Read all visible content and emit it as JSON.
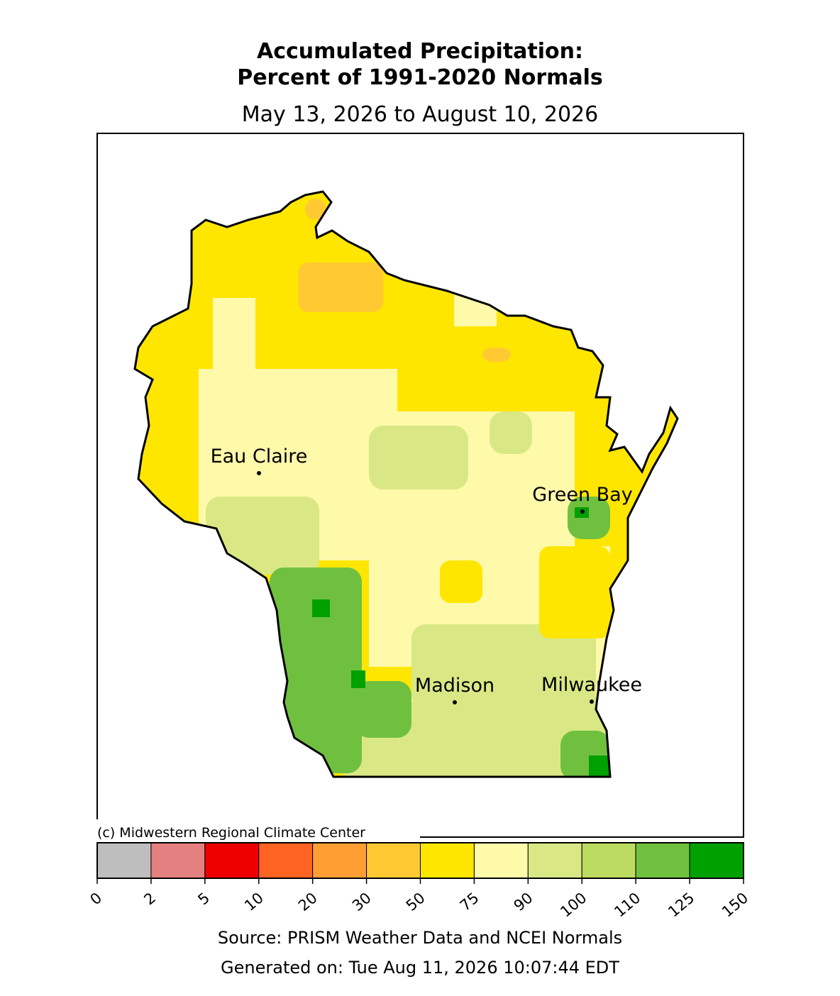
{
  "map": {
    "title": "Accumulated Precipitation:",
    "title_line2": "Percent of 1991-2020 Normals",
    "subtitle": "May 13, 2026 to August 10, 2026",
    "cities": [
      "Eau Claire",
      "Green Bay",
      "Madison",
      "Milwaukee"
    ],
    "copyright": "(c) Midwestern Regional Climate Center",
    "source": "Source: PRISM Weather Data and NCEI Normals",
    "generated": "Generated on: Tue Aug 11, 2026 10:07:44 EDT"
  },
  "colorbar": {
    "bounds": [
      0,
      2,
      5,
      10,
      20,
      30,
      50,
      75,
      90,
      100,
      110,
      125,
      150
    ],
    "colors": [
      "#bebebe",
      "#e58080",
      "#ee0000",
      "#ff6322",
      "#ff9f33",
      "#ffc933",
      "#ffe600",
      "#fff9aa",
      "#d9e884",
      "#bbdc60",
      "#70c040",
      "#00a000"
    ]
  }
}
